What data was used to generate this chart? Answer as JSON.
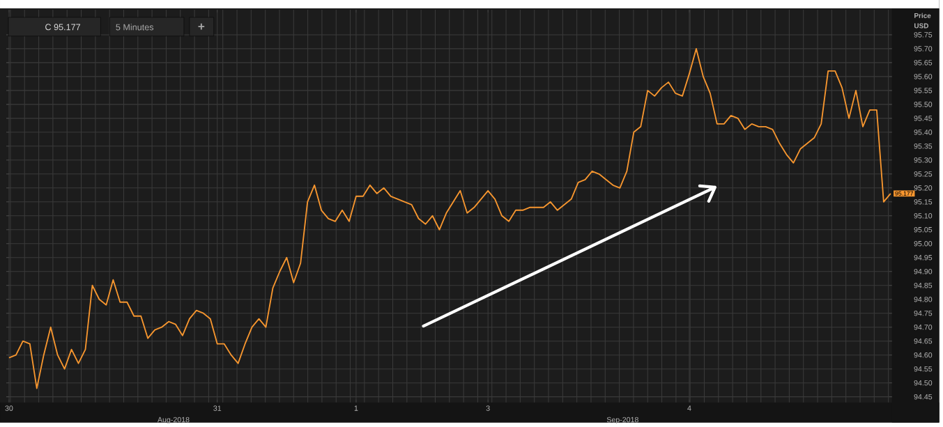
{
  "chart_data": {
    "type": "line",
    "title": "C 95.177",
    "ylabel": "Price USD",
    "color": "#f7962f",
    "grid": true,
    "annotations": [
      "5 Minutes",
      "+",
      "Aug-2018",
      "Sep-2018",
      "95.177"
    ],
    "ylim": [
      94.43,
      95.84
    ],
    "yticks": [
      {
        "value": 94.45,
        "label": "94.45"
      },
      {
        "value": 94.5,
        "label": "94.50"
      },
      {
        "value": 94.55,
        "label": "94.55"
      },
      {
        "value": 94.6,
        "label": "94.60"
      },
      {
        "value": 94.65,
        "label": "94.65"
      },
      {
        "value": 94.7,
        "label": "94.70"
      },
      {
        "value": 94.75,
        "label": "94.75"
      },
      {
        "value": 94.8,
        "label": "94.80"
      },
      {
        "value": 94.85,
        "label": "94.85"
      },
      {
        "value": 94.9,
        "label": "94.90"
      },
      {
        "value": 94.95,
        "label": "94.95"
      },
      {
        "value": 95.0,
        "label": "95.00"
      },
      {
        "value": 95.05,
        "label": "95.05"
      },
      {
        "value": 95.1,
        "label": "95.10"
      },
      {
        "value": 95.15,
        "label": "95.15"
      },
      {
        "value": 95.2,
        "label": "95.20"
      },
      {
        "value": 95.25,
        "label": "95.25"
      },
      {
        "value": 95.3,
        "label": "95.30"
      },
      {
        "value": 95.35,
        "label": "95.35"
      },
      {
        "value": 95.4,
        "label": "95.40"
      },
      {
        "value": 95.45,
        "label": "95.45"
      },
      {
        "value": 95.5,
        "label": "95.50"
      },
      {
        "value": 95.55,
        "label": "95.55"
      },
      {
        "value": 95.6,
        "label": "95.60"
      },
      {
        "value": 95.65,
        "label": "95.65"
      },
      {
        "value": 95.7,
        "label": "95.70"
      },
      {
        "value": 95.75,
        "label": "95.75"
      }
    ],
    "categories": [
      "30",
      null,
      null,
      null,
      null,
      null,
      null,
      null,
      null,
      null,
      null,
      null,
      null,
      null,
      null,
      null,
      null,
      null,
      null,
      null,
      null,
      null,
      null,
      null,
      null,
      null,
      null,
      null,
      null,
      null,
      "31",
      null,
      null,
      null,
      null,
      null,
      null,
      null,
      null,
      null,
      null,
      null,
      null,
      null,
      null,
      null,
      null,
      null,
      null,
      null,
      "1",
      null,
      null,
      null,
      null,
      null,
      null,
      null,
      null,
      null,
      null,
      null,
      null,
      null,
      null,
      null,
      null,
      null,
      null,
      "3",
      null,
      null,
      null,
      null,
      null,
      null,
      null,
      null,
      null,
      null,
      null,
      null,
      null,
      null,
      null,
      null,
      null,
      null,
      null,
      null,
      null,
      null,
      null,
      null,
      null,
      null,
      null,
      null,
      "4",
      null,
      null,
      null,
      null,
      null,
      null,
      null,
      null,
      null,
      null,
      null,
      null,
      null,
      null,
      null,
      null,
      null,
      null,
      null,
      null,
      null,
      null,
      null,
      null,
      null,
      null,
      null,
      null,
      null
    ],
    "values": [
      94.59,
      94.6,
      94.65,
      94.64,
      94.48,
      94.6,
      94.7,
      94.6,
      94.55,
      94.62,
      94.57,
      94.62,
      94.85,
      94.8,
      94.78,
      94.87,
      94.79,
      94.79,
      94.74,
      94.74,
      94.66,
      94.69,
      94.7,
      94.72,
      94.71,
      94.67,
      94.73,
      94.76,
      94.75,
      94.73,
      94.64,
      94.64,
      94.6,
      94.57,
      94.64,
      94.7,
      94.73,
      94.7,
      94.84,
      94.9,
      94.95,
      94.86,
      94.93,
      95.15,
      95.21,
      95.12,
      95.09,
      95.08,
      95.12,
      95.08,
      95.17,
      95.17,
      95.21,
      95.18,
      95.2,
      95.17,
      95.16,
      95.15,
      95.14,
      95.09,
      95.07,
      95.1,
      95.05,
      95.11,
      95.15,
      95.19,
      95.11,
      95.13,
      95.16,
      95.19,
      95.16,
      95.1,
      95.08,
      95.12,
      95.12,
      95.13,
      95.13,
      95.13,
      95.15,
      95.12,
      95.14,
      95.16,
      95.22,
      95.23,
      95.26,
      95.25,
      95.23,
      95.21,
      95.2,
      95.26,
      95.4,
      95.42,
      95.55,
      95.53,
      95.56,
      95.58,
      95.54,
      95.53,
      95.61,
      95.7,
      95.6,
      95.54,
      95.43,
      95.43,
      95.46,
      95.45,
      95.41,
      95.43,
      95.42,
      95.42,
      95.41,
      95.36,
      95.32,
      95.29,
      95.34,
      95.36,
      95.38,
      95.43,
      95.62,
      95.62,
      95.56,
      95.45,
      95.55,
      95.42,
      95.48,
      95.48,
      95.15,
      95.18
    ]
  }
}
